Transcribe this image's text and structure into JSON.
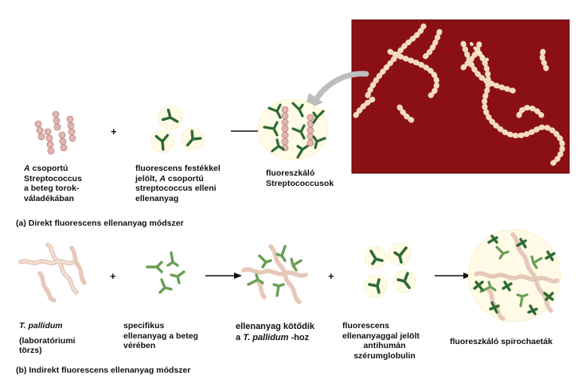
{
  "panel_a": {
    "label_prefix": "(a)",
    "label_text": "Direkt fluorescens ellenanyag módszer",
    "plus": "+",
    "item1": {
      "line1_italic": "A",
      "line1_rest": " csoportú",
      "line2": "Streptococcus",
      "line3": "a beteg torok-",
      "line4": "váladékában"
    },
    "item2": {
      "line1": "fluorescens festékkel",
      "line2_pre": "jelölt, ",
      "line2_italic": "A",
      "line2_rest": " csoportú",
      "line3": "streptococcus elleni",
      "line4": "ellenanyag"
    },
    "item3": {
      "line1": "fluoreszkáló",
      "line2": "Streptococcusok"
    }
  },
  "panel_b": {
    "label_prefix": "(b)",
    "label_text": "Indirekt fluorescens  ellenanyag módszer",
    "plus1": "+",
    "plus2": "+",
    "item1": {
      "line1": "T. pallidum",
      "line2": "(laboratóriumi",
      "line3": "törzs)"
    },
    "item2": {
      "line1": "specifikus",
      "line2": "ellenanyag a beteg",
      "line3": "vérében"
    },
    "item3": {
      "line1": "ellenanyag kötődik",
      "line2_pre": "a ",
      "line2_italic": "T. pallidum",
      "line2_rest": " -hoz"
    },
    "item4": {
      "line1": "fluorescens",
      "line2": "ellenanyaggal jelölt",
      "line3": "antihumán",
      "line4": "szérumglobulin"
    },
    "item5": {
      "line1": "fluoreszkáló spirochaeták"
    }
  },
  "colors": {
    "bacteria": "#e2b5b0",
    "bacteria_edge": "#b98480",
    "spirochete": "#eed3c6",
    "antibody": "#6a9e55",
    "antibody_dark": "#2e6b33",
    "glow": "#e8d36a",
    "photo_bg": "#8a1014",
    "photo_chain": "#f3dcc0"
  },
  "icons": {
    "arrow": "right-arrow-icon",
    "curved_arrow": "curved-arrow-icon"
  }
}
